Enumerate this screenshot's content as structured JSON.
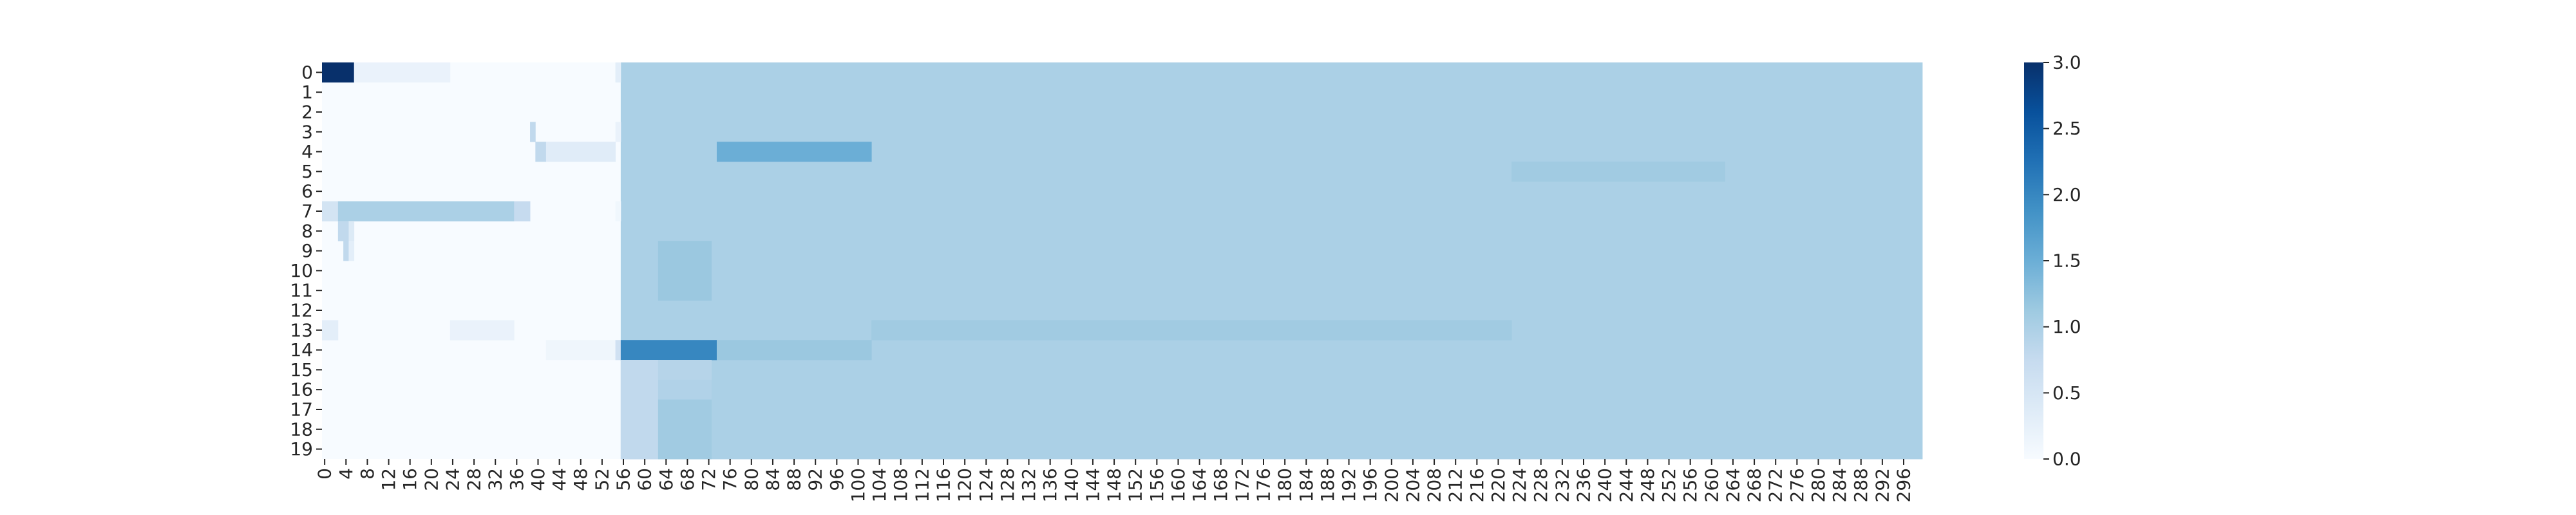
{
  "chart_data": {
    "type": "heatmap",
    "title": "",
    "xlabel": "",
    "ylabel": "",
    "n_rows": 20,
    "n_cols": 300,
    "row_labels": [
      "0",
      "1",
      "2",
      "3",
      "4",
      "5",
      "6",
      "7",
      "8",
      "9",
      "10",
      "11",
      "12",
      "13",
      "14",
      "15",
      "16",
      "17",
      "18",
      "19"
    ],
    "x_tick_labels": [
      "0",
      "4",
      "8",
      "12",
      "16",
      "20",
      "24",
      "28",
      "32",
      "36",
      "40",
      "44",
      "48",
      "52",
      "56",
      "60",
      "64",
      "68",
      "72",
      "76",
      "80",
      "84",
      "88",
      "92",
      "96",
      "100",
      "104",
      "108",
      "112",
      "116",
      "120",
      "124",
      "128",
      "132",
      "136",
      "140",
      "144",
      "148",
      "152",
      "156",
      "160",
      "164",
      "168",
      "172",
      "176",
      "180",
      "184",
      "188",
      "192",
      "196",
      "200",
      "204",
      "208",
      "212",
      "216",
      "220",
      "224",
      "228",
      "232",
      "236",
      "240",
      "244",
      "248",
      "252",
      "256",
      "260",
      "264",
      "268",
      "272",
      "276",
      "280",
      "284",
      "288",
      "292",
      "296"
    ],
    "colormap": "Blues",
    "vmin": 0,
    "vmax": 3.0,
    "colorbar_ticks": [
      "0.0",
      "0.5",
      "1.0",
      "1.5",
      "2.0",
      "2.5",
      "3.0"
    ],
    "colorbar_tick_values": [
      0,
      0.5,
      1.0,
      1.5,
      2.0,
      2.5,
      3.0
    ],
    "base_value": 0.0,
    "regions": [
      {
        "rows": [
          0,
          19
        ],
        "cols": [
          56,
          299
        ],
        "value": 1.0
      },
      {
        "rows": [
          0,
          0
        ],
        "cols": [
          0,
          5
        ],
        "value": 3.0
      },
      {
        "rows": [
          0,
          0
        ],
        "cols": [
          6,
          23
        ],
        "value": 0.2
      },
      {
        "rows": [
          0,
          0
        ],
        "cols": [
          55,
          55
        ],
        "value": 0.3
      },
      {
        "rows": [
          3,
          3
        ],
        "cols": [
          39,
          39
        ],
        "value": 0.8
      },
      {
        "rows": [
          3,
          3
        ],
        "cols": [
          55,
          55
        ],
        "value": 0.2
      },
      {
        "rows": [
          4,
          4
        ],
        "cols": [
          40,
          41
        ],
        "value": 0.8
      },
      {
        "rows": [
          4,
          4
        ],
        "cols": [
          42,
          54
        ],
        "value": 0.35
      },
      {
        "rows": [
          4,
          4
        ],
        "cols": [
          74,
          102
        ],
        "value": 1.5
      },
      {
        "rows": [
          5,
          5
        ],
        "cols": [
          223,
          262
        ],
        "value": 1.1
      },
      {
        "rows": [
          7,
          7
        ],
        "cols": [
          0,
          2
        ],
        "value": 0.55
      },
      {
        "rows": [
          7,
          7
        ],
        "cols": [
          3,
          35
        ],
        "value": 1.0
      },
      {
        "rows": [
          7,
          7
        ],
        "cols": [
          36,
          38
        ],
        "value": 0.75
      },
      {
        "rows": [
          7,
          7
        ],
        "cols": [
          55,
          55
        ],
        "value": 0.1
      },
      {
        "rows": [
          8,
          8
        ],
        "cols": [
          3,
          4
        ],
        "value": 0.8
      },
      {
        "rows": [
          8,
          8
        ],
        "cols": [
          5,
          5
        ],
        "value": 0.4
      },
      {
        "rows": [
          9,
          9
        ],
        "cols": [
          4,
          4
        ],
        "value": 0.8
      },
      {
        "rows": [
          9,
          9
        ],
        "cols": [
          5,
          5
        ],
        "value": 0.3
      },
      {
        "rows": [
          9,
          11
        ],
        "cols": [
          63,
          72
        ],
        "value": 1.15
      },
      {
        "rows": [
          13,
          13
        ],
        "cols": [
          0,
          2
        ],
        "value": 0.3
      },
      {
        "rows": [
          13,
          13
        ],
        "cols": [
          24,
          35
        ],
        "value": 0.2
      },
      {
        "rows": [
          13,
          13
        ],
        "cols": [
          103,
          222
        ],
        "value": 1.1
      },
      {
        "rows": [
          14,
          14
        ],
        "cols": [
          42,
          54
        ],
        "value": 0.12
      },
      {
        "rows": [
          14,
          14
        ],
        "cols": [
          55,
          55
        ],
        "value": 0.6
      },
      {
        "rows": [
          14,
          14
        ],
        "cols": [
          56,
          73
        ],
        "value": 2.0
      },
      {
        "rows": [
          14,
          14
        ],
        "cols": [
          74,
          102
        ],
        "value": 1.15
      },
      {
        "rows": [
          15,
          19
        ],
        "cols": [
          56,
          62
        ],
        "value": 0.8
      },
      {
        "rows": [
          15,
          15
        ],
        "cols": [
          63,
          72
        ],
        "value": 0.9
      },
      {
        "rows": [
          16,
          16
        ],
        "cols": [
          63,
          72
        ],
        "value": 0.95
      },
      {
        "rows": [
          17,
          19
        ],
        "cols": [
          63,
          72
        ],
        "value": 1.1
      }
    ]
  }
}
